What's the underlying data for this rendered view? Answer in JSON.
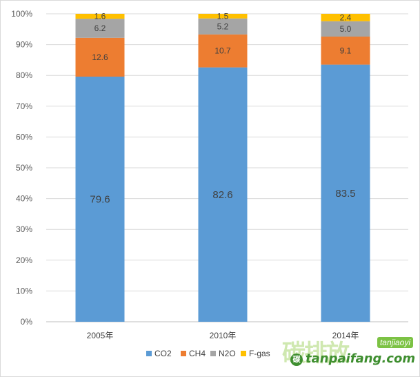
{
  "chart_data": {
    "type": "bar",
    "stacked": true,
    "percent_stacked": true,
    "categories": [
      "2005年",
      "2010年",
      "2014年"
    ],
    "series": [
      {
        "name": "CO2",
        "color": "#5b9bd5",
        "values": [
          79.6,
          82.6,
          83.5
        ]
      },
      {
        "name": "CH4",
        "color": "#ed7d31",
        "values": [
          12.6,
          10.7,
          9.1
        ]
      },
      {
        "name": "N2O",
        "color": "#a5a5a5",
        "values": [
          6.2,
          5.2,
          5.0
        ]
      },
      {
        "name": "F-gas",
        "color": "#ffc000",
        "values": [
          1.6,
          1.5,
          2.4
        ]
      }
    ],
    "ylim": [
      0,
      100
    ],
    "y_ticks": [
      "0%",
      "10%",
      "20%",
      "30%",
      "40%",
      "50%",
      "60%",
      "70%",
      "80%",
      "90%",
      "100%"
    ],
    "grid": true,
    "legend_placement": "bottom",
    "title": "",
    "xlabel": "",
    "ylabel": ""
  },
  "watermark": {
    "chinese": "碳排放",
    "pinyin": "tanjiaoyi",
    "site": "tanpaifang.com",
    "logo_letter": "碳"
  }
}
